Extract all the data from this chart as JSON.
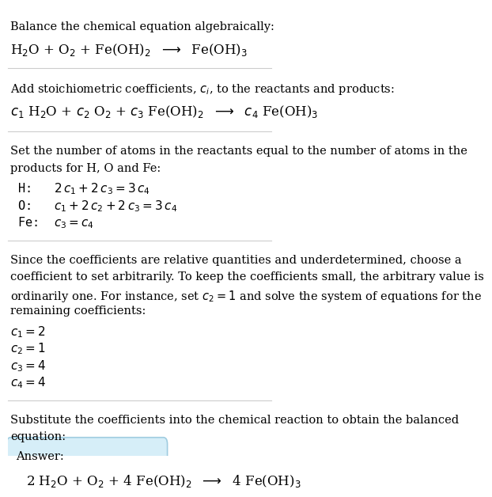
{
  "bg_color": "#ffffff",
  "text_color": "#000000",
  "answer_box_color": "#d6eef8",
  "answer_box_border": "#a0cce0",
  "divider_color": "#cccccc",
  "section1": {
    "line1": "Balance the chemical equation algebraically:",
    "line2": "H$_2$O + O$_2$ + Fe(OH)$_2$  $\\longrightarrow$  Fe(OH)$_3$"
  },
  "section2": {
    "line1": "Add stoichiometric coefficients, $c_i$, to the reactants and products:",
    "line2": "$c_1$ H$_2$O + $c_2$ O$_2$ + $c_3$ Fe(OH)$_2$  $\\longrightarrow$  $c_4$ Fe(OH)$_3$"
  },
  "section3": {
    "line1": "Set the number of atoms in the reactants equal to the number of atoms in the",
    "line2": "products for H, O and Fe:",
    "line3": " H:   $2\\,c_1 + 2\\,c_3 = 3\\,c_4$",
    "line4": " O:   $c_1 + 2\\,c_2 + 2\\,c_3 = 3\\,c_4$",
    "line5": " Fe:  $c_3 = c_4$"
  },
  "section4": {
    "line1": "Since the coefficients are relative quantities and underdetermined, choose a",
    "line2": "coefficient to set arbitrarily. To keep the coefficients small, the arbitrary value is",
    "line3": "ordinarily one. For instance, set $c_2 = 1$ and solve the system of equations for the",
    "line4": "remaining coefficients:",
    "line5": "$c_1 = 2$",
    "line6": "$c_2 = 1$",
    "line7": "$c_3 = 4$",
    "line8": "$c_4 = 4$"
  },
  "section5": {
    "line1": "Substitute the coefficients into the chemical reaction to obtain the balanced",
    "line2": "equation:"
  },
  "answer_label": "Answer:",
  "answer_eq": "2 H$_2$O + O$_2$ + 4 Fe(OH)$_2$  $\\longrightarrow$  4 Fe(OH)$_3$"
}
